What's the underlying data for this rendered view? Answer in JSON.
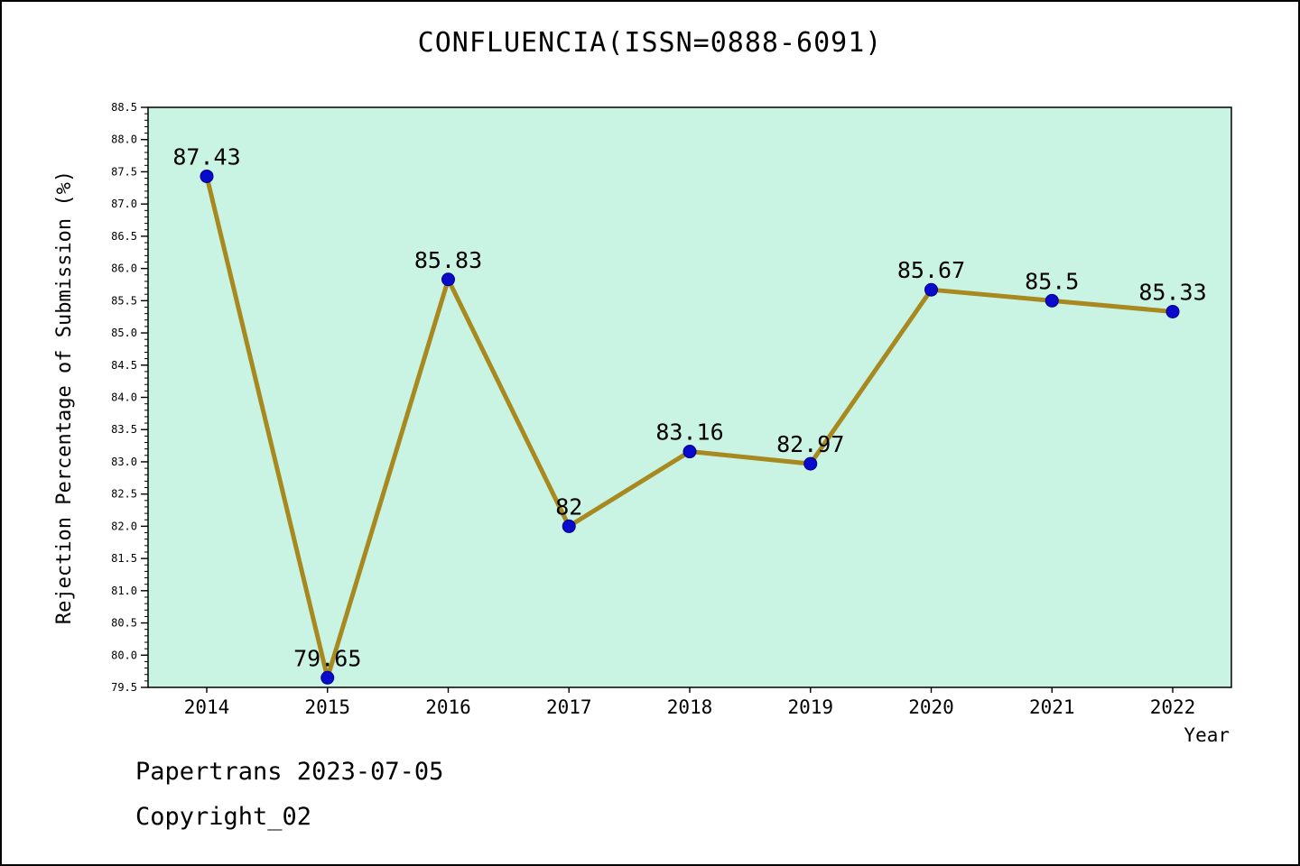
{
  "title": "CONFLUENCIA(ISSN=0888-6091)",
  "footer": {
    "line1": "Papertrans 2023-07-05",
    "line2": "Copyright_02"
  },
  "chart_data": {
    "type": "line",
    "title": "CONFLUENCIA(ISSN=0888-6091)",
    "xlabel": "Year",
    "ylabel": "Rejection Percentage of Submission (%)",
    "x": [
      2014,
      2015,
      2016,
      2017,
      2018,
      2019,
      2020,
      2021,
      2022
    ],
    "values": [
      87.43,
      79.65,
      85.83,
      82,
      83.16,
      82.97,
      85.67,
      85.5,
      85.33
    ],
    "point_labels": [
      "87.43",
      "79.65",
      "85.83",
      "82",
      "83.16",
      "82.97",
      "85.67",
      "85.5",
      "85.33"
    ],
    "ylim": [
      79.5,
      88.5
    ],
    "ytick_major_step": 0.5,
    "ytick_minor_step": 0.1,
    "grid": false,
    "legend": "none",
    "colors": {
      "line": "#a8891f",
      "marker": "#0a0acc",
      "marker_edge": "#000080",
      "plot_bg": "#c9f4e4",
      "axis": "#000000",
      "text": "#000000"
    }
  }
}
